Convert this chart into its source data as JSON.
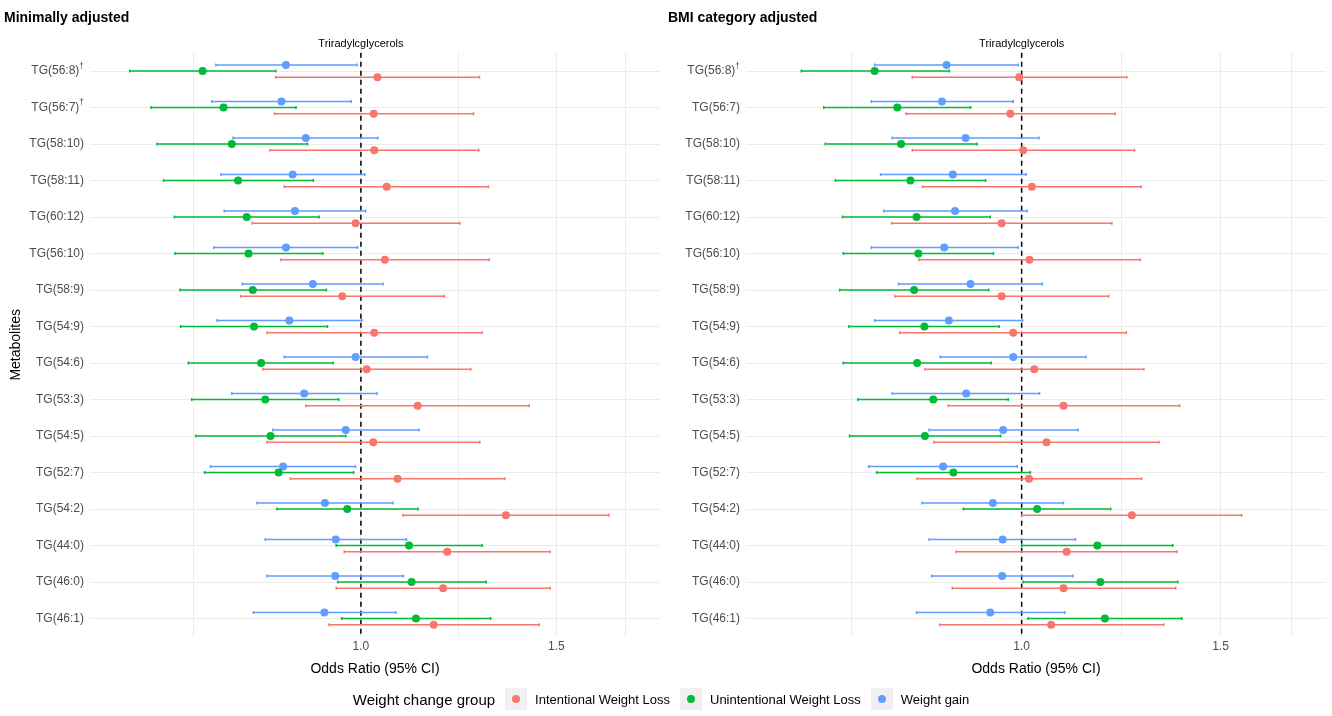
{
  "chart_data": [
    {
      "type": "scatter",
      "title": "Minimally adjusted",
      "xlabel": "Odds Ratio (95% CI)",
      "ylabel": "Metabolites",
      "orientation": "horizontal",
      "log": "x",
      "marker": "circle",
      "grid": true,
      "legend": "bottom",
      "legend_title": "Weight change group",
      "categories": [
        "TG(56:8)$^{†}$",
        "TG(56:7)$^{†}$",
        "TG(58:10)",
        "TG(58:11)",
        "TG(60:12)",
        "TG(56:10)",
        "TG(58:9)",
        "TG(54:9)",
        "TG(54:6)",
        "TG(53:3)",
        "TG(54:5)",
        "TG(52:7)",
        "TG(54:2)",
        "TG(44:0)",
        "TG(46:0)",
        "TG(46:1)"
      ],
      "xlim": [
        0.57,
        1.86
      ],
      "xticks": [
        {
          "value": 0.707,
          "label": null
        },
        {
          "value": 1,
          "label": "1.0"
        },
        {
          "value": 1.225,
          "label": null
        },
        {
          "value": 1.5,
          "label": "1.5"
        },
        {
          "value": 1.732,
          "label": null
        }
      ],
      "ref_lines": [
        {
          "axis": "x",
          "value": 1,
          "label": "Triradylcglycerols",
          "line_style": "dashed",
          "color": "#000000"
        }
      ],
      "series": [
        {
          "name": "Intentional Weight Loss",
          "color": "#f8766d",
          "values": [
            1.035,
            1.027,
            1.028,
            1.055,
            0.989,
            1.051,
            0.962,
            1.028,
            1.012,
            1.125,
            1.026,
            1.079,
            1.351,
            1.196,
            1.186,
            1.163
          ],
          "errors": [
            [
              0.838,
              1.279
            ],
            [
              0.836,
              1.263
            ],
            [
              0.828,
              1.277
            ],
            [
              0.853,
              1.303
            ],
            [
              0.798,
              1.228
            ],
            [
              0.847,
              1.305
            ],
            [
              0.779,
              1.189
            ],
            [
              0.823,
              1.286
            ],
            [
              0.816,
              1.256
            ],
            [
              0.892,
              1.418
            ],
            [
              0.823,
              1.28
            ],
            [
              0.864,
              1.348
            ],
            [
              1.091,
              1.673
            ],
            [
              0.966,
              1.481
            ],
            [
              0.95,
              1.481
            ],
            [
              0.936,
              1.448
            ]
          ]
        },
        {
          "name": "Unintentional Weight Loss",
          "color": "#00ba38",
          "values": [
            0.72,
            0.752,
            0.765,
            0.775,
            0.789,
            0.792,
            0.799,
            0.801,
            0.813,
            0.82,
            0.829,
            0.843,
            0.972,
            1.105,
            1.111,
            1.121
          ],
          "errors": [
            [
              0.619,
              0.838
            ],
            [
              0.647,
              0.874
            ],
            [
              0.655,
              0.895
            ],
            [
              0.664,
              0.906
            ],
            [
              0.679,
              0.917
            ],
            [
              0.68,
              0.924
            ],
            [
              0.687,
              0.931
            ],
            [
              0.688,
              0.933
            ],
            [
              0.699,
              0.944
            ],
            [
              0.704,
              0.955
            ],
            [
              0.71,
              0.969
            ],
            [
              0.723,
              0.985
            ],
            [
              0.84,
              1.126
            ],
            [
              0.95,
              1.286
            ],
            [
              0.953,
              1.297
            ],
            [
              0.961,
              1.309
            ]
          ]
        },
        {
          "name": "Weight gain",
          "color": "#619cff",
          "values": [
            0.856,
            0.848,
            0.892,
            0.868,
            0.872,
            0.856,
            0.905,
            0.862,
            0.989,
            0.889,
            0.969,
            0.851,
            0.928,
            0.949,
            0.948,
            0.927
          ],
          "errors": [
            [
              0.74,
              0.992
            ],
            [
              0.734,
              0.98
            ],
            [
              0.767,
              1.036
            ],
            [
              0.748,
              1.008
            ],
            [
              0.753,
              1.01
            ],
            [
              0.737,
              0.993
            ],
            [
              0.782,
              1.047
            ],
            [
              0.742,
              1.002
            ],
            [
              0.853,
              1.148
            ],
            [
              0.765,
              1.034
            ],
            [
              0.833,
              1.128
            ],
            [
              0.732,
              0.989
            ],
            [
              0.806,
              1.069
            ],
            [
              0.82,
              1.099
            ],
            [
              0.823,
              1.092
            ],
            [
              0.8,
              1.075
            ]
          ]
        }
      ]
    },
    {
      "type": "scatter",
      "title": "BMI category adjusted",
      "xlabel": "Odds Ratio (95% CI)",
      "orientation": "horizontal",
      "log": "x",
      "marker": "circle",
      "grid": true,
      "categories": [
        "TG(56:8)$^{†}$",
        "TG(56:7)",
        "TG(58:10)",
        "TG(58:11)",
        "TG(60:12)",
        "TG(56:10)",
        "TG(58:9)",
        "TG(54:9)",
        "TG(54:6)",
        "TG(53:3)",
        "TG(54:5)",
        "TG(52:7)",
        "TG(54:2)",
        "TG(44:0)",
        "TG(46:0)",
        "TG(46:1)"
      ],
      "xlim": [
        0.57,
        1.86
      ],
      "xticks": [
        {
          "value": 0.707,
          "label": null
        },
        {
          "value": 1,
          "label": "1.0"
        },
        {
          "value": 1.225,
          "label": null
        },
        {
          "value": 1.5,
          "label": "1.5"
        },
        {
          "value": 1.732,
          "label": null
        }
      ],
      "ref_lines": [
        {
          "axis": "x",
          "value": 1,
          "label": "Triradylcglycerols",
          "line_style": "dashed",
          "color": "#000000"
        }
      ],
      "series": [
        {
          "color": "#f8766d",
          "values": [
            0.995,
            0.977,
            1.003,
            1.021,
            0.96,
            1.016,
            0.96,
            0.983,
            1.026,
            1.089,
            1.052,
            1.015,
            1.252,
            1.096,
            1.089,
            1.062
          ],
          "errors": [
            [
              0.8,
              1.239
            ],
            [
              0.79,
              1.21
            ],
            [
              0.8,
              1.259
            ],
            [
              0.817,
              1.276
            ],
            [
              0.767,
              1.202
            ],
            [
              0.811,
              1.274
            ],
            [
              0.772,
              1.194
            ],
            [
              0.78,
              1.238
            ],
            [
              0.821,
              1.283
            ],
            [
              0.861,
              1.38
            ],
            [
              0.836,
              1.323
            ],
            [
              0.808,
              1.277
            ],
            [
              1.0,
              1.566
            ],
            [
              0.875,
              1.373
            ],
            [
              0.868,
              1.369
            ],
            [
              0.846,
              1.336
            ]
          ]
        },
        {
          "color": "#00ba38",
          "values": [
            0.741,
            0.776,
            0.782,
            0.797,
            0.807,
            0.81,
            0.803,
            0.82,
            0.808,
            0.835,
            0.821,
            0.87,
            1.032,
            1.167,
            1.174,
            1.185
          ],
          "errors": [
            [
              0.638,
              0.863
            ],
            [
              0.668,
              0.901
            ],
            [
              0.67,
              0.913
            ],
            [
              0.684,
              0.929
            ],
            [
              0.694,
              0.938
            ],
            [
              0.695,
              0.944
            ],
            [
              0.69,
              0.935
            ],
            [
              0.703,
              0.955
            ],
            [
              0.695,
              0.94
            ],
            [
              0.716,
              0.973
            ],
            [
              0.704,
              0.958
            ],
            [
              0.744,
              1.018
            ],
            [
              0.888,
              1.199
            ],
            [
              1.0,
              1.361
            ],
            [
              1.003,
              1.375
            ],
            [
              1.013,
              1.386
            ]
          ]
        },
        {
          "color": "#619cff",
          "values": [
            0.858,
            0.85,
            0.892,
            0.869,
            0.873,
            0.854,
            0.901,
            0.862,
            0.983,
            0.893,
            0.963,
            0.852,
            0.943,
            0.962,
            0.961,
            0.938
          ],
          "errors": [
            [
              0.741,
              0.993
            ],
            [
              0.736,
              0.983
            ],
            [
              0.768,
              1.036
            ],
            [
              0.75,
              1.009
            ],
            [
              0.755,
              1.011
            ],
            [
              0.736,
              0.993
            ],
            [
              0.778,
              1.043
            ],
            [
              0.741,
              1.002
            ],
            [
              0.847,
              1.14
            ],
            [
              0.768,
              1.037
            ],
            [
              0.828,
              1.122
            ],
            [
              0.732,
              0.991
            ],
            [
              0.816,
              1.089
            ],
            [
              0.828,
              1.116
            ],
            [
              0.832,
              1.11
            ],
            [
              0.807,
              1.092
            ]
          ]
        }
      ]
    }
  ]
}
